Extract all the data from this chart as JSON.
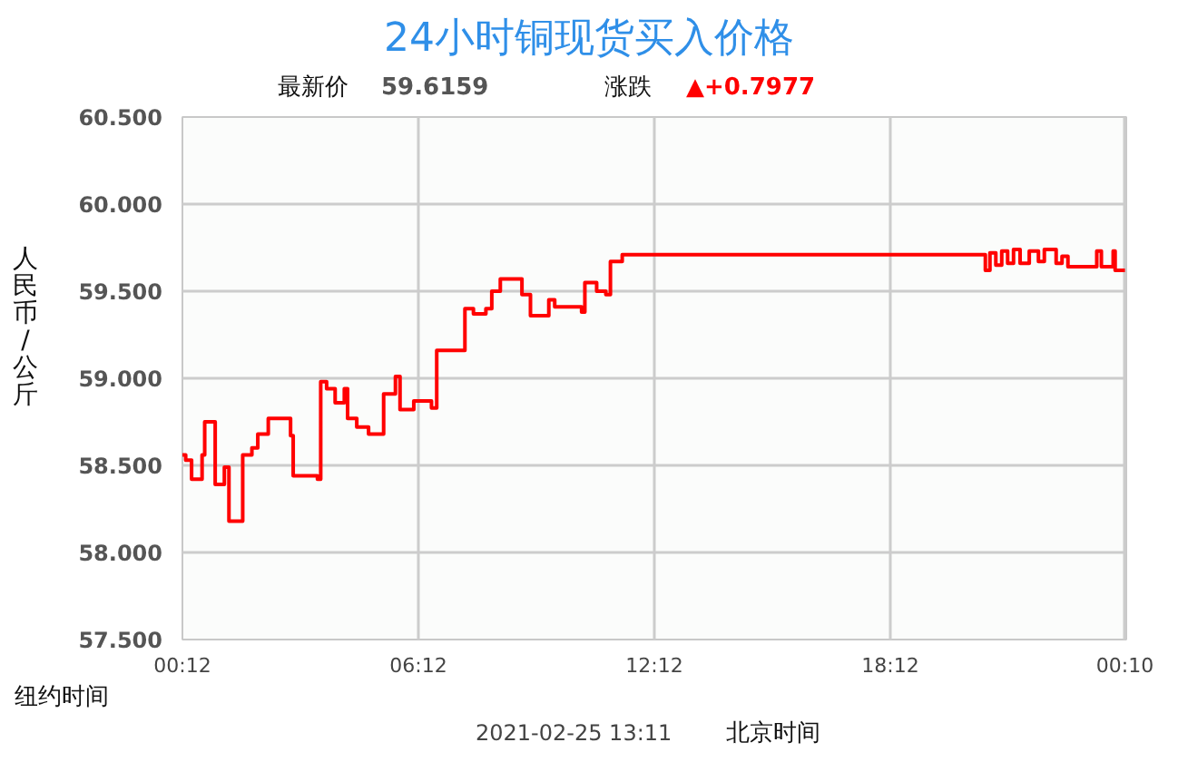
{
  "chart_data": {
    "type": "step",
    "title": "24小时铜现货买入价格",
    "xlabel": "纽约时间",
    "ylabel": "人民币/公斤",
    "annotations": [
      "最新价",
      "59.6159",
      "涨跌",
      "▲+0.7977",
      "2021-02-25 13:11",
      "北京时间"
    ],
    "grid": true,
    "marker": "none",
    "line_style": "solid",
    "xlim": [
      "2021-02-24T00:12",
      "2021-02-25T00:12"
    ],
    "xticks": [
      {
        "value": "2021-02-24T00:12",
        "label": "00:12"
      },
      {
        "value": "2021-02-24T06:12",
        "label": "06:12"
      },
      {
        "value": "2021-02-24T12:12",
        "label": "12:12"
      },
      {
        "value": "2021-02-24T18:12",
        "label": "18:12"
      },
      {
        "value": "2021-02-25T00:10",
        "label": "00:10"
      }
    ],
    "ylim": [
      57.5,
      60.5
    ],
    "yticks": [
      {
        "value": 57.5,
        "label": "57.500"
      },
      {
        "value": 58.0,
        "label": "58.000"
      },
      {
        "value": 58.5,
        "label": "58.500"
      },
      {
        "value": 59.0,
        "label": "59.000"
      },
      {
        "value": 59.5,
        "label": "59.500"
      },
      {
        "value": 60.0,
        "label": "60.000"
      },
      {
        "value": 60.5,
        "label": "60.500"
      }
    ],
    "series": [
      {
        "color": "#ff0000",
        "x": [
          "2021-02-24T00:12",
          "2021-02-24T00:17",
          "2021-02-24T00:26",
          "2021-02-24T00:40",
          "2021-02-24T00:42",
          "2021-02-24T00:46",
          "2021-02-24T00:58",
          "2021-02-24T01:02",
          "2021-02-24T01:16",
          "2021-02-24T01:23",
          "2021-02-24T01:39",
          "2021-02-24T01:44",
          "2021-02-24T01:58",
          "2021-02-24T02:07",
          "2021-02-24T02:23",
          "2021-02-24T02:57",
          "2021-02-24T03:01",
          "2021-02-24T03:38",
          "2021-02-24T03:43",
          "2021-02-24T03:52",
          "2021-02-24T04:05",
          "2021-02-24T04:19",
          "2021-02-24T04:24",
          "2021-02-24T04:38",
          "2021-02-24T04:56",
          "2021-02-24T05:19",
          "2021-02-24T05:37",
          "2021-02-24T05:44",
          "2021-02-24T06:05",
          "2021-02-24T06:32",
          "2021-02-24T06:40",
          "2021-02-24T07:20",
          "2021-02-24T07:23",
          "2021-02-24T07:36",
          "2021-02-24T07:55",
          "2021-02-24T08:04",
          "2021-02-24T08:17",
          "2021-02-24T08:50",
          "2021-02-24T09:03",
          "2021-02-24T09:22",
          "2021-02-24T09:31",
          "2021-02-24T09:40",
          "2021-02-24T10:21",
          "2021-02-24T10:26",
          "2021-02-24T10:44",
          "2021-02-24T10:58",
          "2021-02-24T11:05",
          "2021-02-24T11:20",
          "2021-02-24T11:23",
          "2021-02-24T20:35",
          "2021-02-24T20:37",
          "2021-02-24T20:44",
          "2021-02-24T20:53",
          "2021-02-24T21:02",
          "2021-02-24T21:11",
          "2021-02-24T21:20",
          "2021-02-24T21:30",
          "2021-02-24T21:44",
          "2021-02-24T21:58",
          "2021-02-24T22:07",
          "2021-02-24T22:25",
          "2021-02-24T22:34",
          "2021-02-24T22:43",
          "2021-02-24T23:24",
          "2021-02-24T23:27",
          "2021-02-24T23:34",
          "2021-02-24T23:52",
          "2021-02-24T23:55",
          "2021-02-25T00:10"
        ],
        "values": [
          58.56,
          58.53,
          58.42,
          58.42,
          58.56,
          58.75,
          58.75,
          58.39,
          58.49,
          58.18,
          58.18,
          58.56,
          58.6,
          58.68,
          58.77,
          58.67,
          58.44,
          58.42,
          58.98,
          58.94,
          58.86,
          58.94,
          58.77,
          58.72,
          58.68,
          58.91,
          59.01,
          58.82,
          58.87,
          58.83,
          59.16,
          59.16,
          59.4,
          59.37,
          59.4,
          59.5,
          59.57,
          59.48,
          59.36,
          59.36,
          59.45,
          59.41,
          59.38,
          59.55,
          59.5,
          59.48,
          59.67,
          59.67,
          59.71,
          59.71,
          59.62,
          59.72,
          59.65,
          59.73,
          59.66,
          59.74,
          59.66,
          59.73,
          59.67,
          59.74,
          59.66,
          59.7,
          59.64,
          59.64,
          59.73,
          59.64,
          59.73,
          59.62,
          59.62
        ]
      }
    ]
  }
}
